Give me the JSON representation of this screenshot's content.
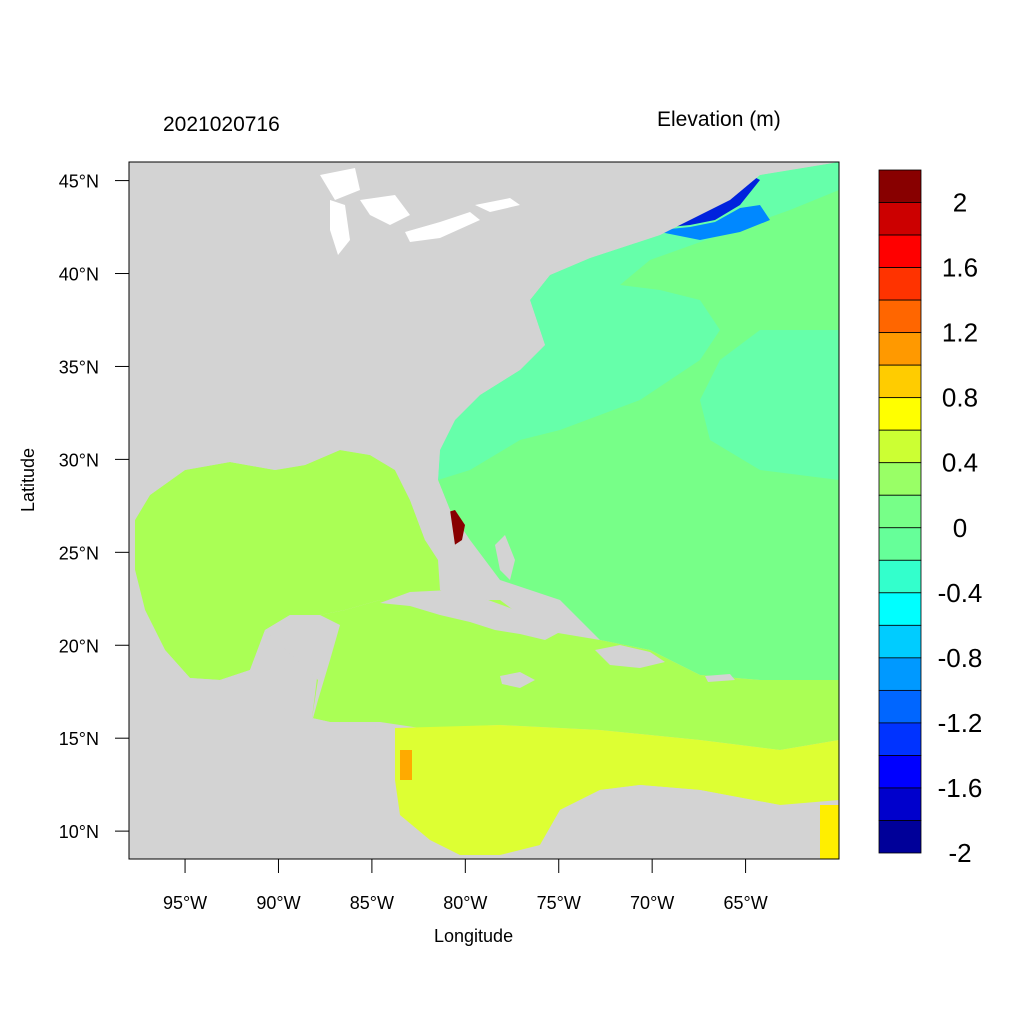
{
  "plot": {
    "title_left": "2021020716",
    "title_right": "Elevation (m)",
    "xlabel": "Longitude",
    "ylabel": "Latitude",
    "lat_ticks": [
      {
        "value": 45,
        "label": "45°N"
      },
      {
        "value": 40,
        "label": "40°N"
      },
      {
        "value": 35,
        "label": "35°N"
      },
      {
        "value": 30,
        "label": "30°N"
      },
      {
        "value": 25,
        "label": "25°N"
      },
      {
        "value": 20,
        "label": "20°N"
      },
      {
        "value": 15,
        "label": "15°N"
      },
      {
        "value": 10,
        "label": "10°N"
      }
    ],
    "lon_ticks": [
      {
        "value": -95,
        "label": "95°W"
      },
      {
        "value": -90,
        "label": "90°W"
      },
      {
        "value": -85,
        "label": "85°W"
      },
      {
        "value": -80,
        "label": "80°W"
      },
      {
        "value": -75,
        "label": "75°W"
      },
      {
        "value": -70,
        "label": "70°W"
      },
      {
        "value": -65,
        "label": "65°W"
      }
    ],
    "lon_range": [
      -98,
      -60
    ],
    "lat_range": [
      8.5,
      46
    ],
    "land_color": "#d3d3d3"
  },
  "colorbar": {
    "colors": [
      "#000099",
      "#0000cc",
      "#0000ff",
      "#0033ff",
      "#0066ff",
      "#0099ff",
      "#00ccff",
      "#00ffff",
      "#33ffcc",
      "#66ff99",
      "#77ff88",
      "#99ff66",
      "#ccff33",
      "#ffff00",
      "#ffcc00",
      "#ff9900",
      "#ff6600",
      "#ff3300",
      "#ff0000",
      "#cc0000",
      "#880000"
    ],
    "labels": [
      "2",
      "1.6",
      "1.2",
      "0.8",
      "0.4",
      "0",
      "-0.4",
      "-0.8",
      "-1.2",
      "-1.6",
      "-2"
    ]
  },
  "regions": {
    "gulf_color": "#aaff55",
    "atlantic_color": "#77ff88",
    "shelf_color": "#66ffaa",
    "caribbean_south_color": "#ddff33",
    "gulf_of_maine_color": "#0022dd",
    "florida_surge_color": "#880000"
  }
}
